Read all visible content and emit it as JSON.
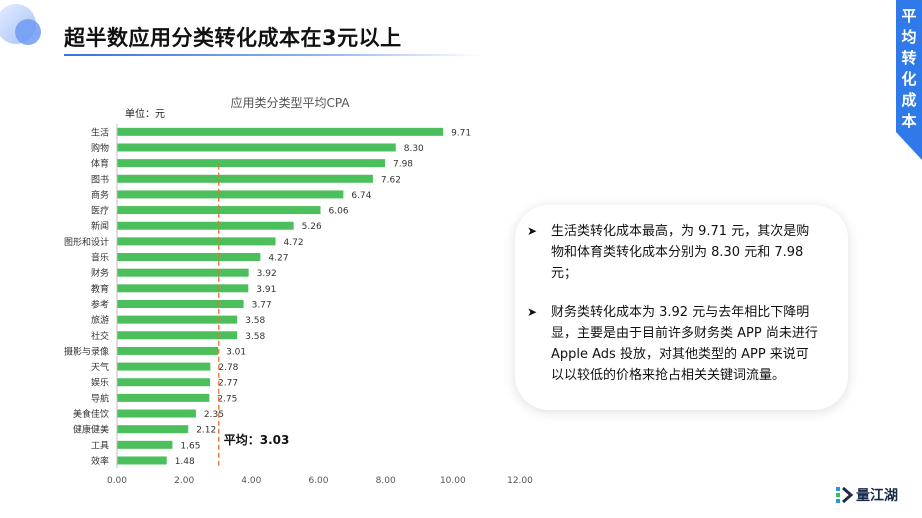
{
  "page": {
    "title": "超半数应用分类转化成本在3元以上",
    "side_tab": "平均转化成本"
  },
  "chart_data": {
    "type": "bar",
    "orientation": "horizontal",
    "title": "应用类分类型平均CPA",
    "unit_label": "单位：元",
    "categories": [
      "生活",
      "购物",
      "体育",
      "图书",
      "商务",
      "医疗",
      "新闻",
      "图形和设计",
      "音乐",
      "财务",
      "教育",
      "参考",
      "旅游",
      "社交",
      "摄影与录像",
      "天气",
      "娱乐",
      "导航",
      "美食佳饮",
      "健康健美",
      "工具",
      "效率"
    ],
    "values": [
      9.71,
      8.3,
      7.98,
      7.62,
      6.74,
      6.06,
      5.26,
      4.72,
      4.27,
      3.92,
      3.91,
      3.77,
      3.58,
      3.58,
      3.01,
      2.78,
      2.77,
      2.75,
      2.35,
      2.12,
      1.65,
      1.48
    ],
    "value_labels": [
      "9.71",
      "8.30",
      "7.98",
      "7.62",
      "6.74",
      "6.06",
      "5.26",
      "4.72",
      "4.27",
      "3.92",
      "3.91",
      "3.77",
      "3.58",
      "3.58",
      "3.01",
      "2.78",
      "2.77",
      "2.75",
      "2.35",
      "2.12",
      "1.65",
      "1.48"
    ],
    "xlim": [
      0,
      12
    ],
    "x_ticks": [
      0,
      2,
      4,
      6,
      8,
      10,
      12
    ],
    "x_tick_labels": [
      "0.00",
      "2.00",
      "4.00",
      "6.00",
      "8.00",
      "10.00",
      "12.00"
    ],
    "average": {
      "value": 3.03,
      "label": "平均：3.03"
    },
    "grid": false,
    "colors": {
      "bar": "#4bbf5b",
      "average_line": "#e8742c"
    }
  },
  "notes": [
    "生活类转化成本最高，为 9.71 元，其次是购物和体育类转化成本分别为 8.30 元和 7.98 元；",
    "财务类转化成本为 3.92 元与去年相比下降明显，主要是由于目前许多财务类 APP 尚未进行 Apple Ads 投放，对其他类型的 APP 来说可以以较低的价格来抢占相关关键词流量。"
  ],
  "logo": {
    "text": "量江湖",
    "icon": "liangjianghu-logo-icon"
  },
  "colors": {
    "accent": "#2f6fe4",
    "tab": "#2f79e8"
  }
}
